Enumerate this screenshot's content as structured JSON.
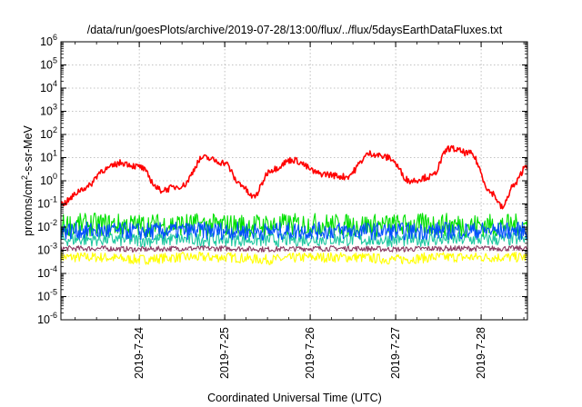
{
  "chart_data": {
    "type": "line",
    "title": "/data/run/goesPlots/archive/2019-07-28/13:00/flux/../flux/5daysEarthDataFluxes.txt",
    "xlabel": "Coordinated Universal Time (UTC)",
    "ylabel_base": "protons/cm",
    "ylabel_sup": "2",
    "ylabel_tail": "-s-sr-MeV",
    "yscale": "log",
    "ylim": [
      1e-06,
      1000000.0
    ],
    "xlim_days": [
      "2019-07-23 02:00",
      "2019-07-28 13:00"
    ],
    "x_ticks": [
      "2019-7-24",
      "2019-7-25",
      "2019-7-26",
      "2019-7-27",
      "2019-7-28"
    ],
    "y_tick_exponents": [
      -6,
      -5,
      -4,
      -3,
      -2,
      -1,
      0,
      1,
      2,
      3,
      4,
      5,
      6
    ],
    "grid": true,
    "series": [
      {
        "color": "#ffff00",
        "x": [
          "2019-07-23 02:00",
          "2019-07-23 12:00",
          "2019-07-24 00:00",
          "2019-07-24 12:00",
          "2019-07-25 00:00",
          "2019-07-25 12:00",
          "2019-07-26 00:00",
          "2019-07-26 12:00",
          "2019-07-27 00:00",
          "2019-07-27 12:00",
          "2019-07-28 00:00",
          "2019-07-28 13:00"
        ],
        "values": [
          0.0005,
          0.0005,
          0.0004,
          0.0005,
          0.0005,
          0.0004,
          0.0005,
          0.0005,
          0.0004,
          0.0005,
          0.0005,
          0.0005
        ]
      },
      {
        "color": "#8b3a62",
        "x": [
          "2019-07-23 02:00",
          "2019-07-23 12:00",
          "2019-07-24 00:00",
          "2019-07-24 12:00",
          "2019-07-25 00:00",
          "2019-07-25 12:00",
          "2019-07-26 00:00",
          "2019-07-26 12:00",
          "2019-07-27 00:00",
          "2019-07-27 12:00",
          "2019-07-28 00:00",
          "2019-07-28 13:00"
        ],
        "values": [
          0.0012,
          0.0012,
          0.0011,
          0.0012,
          0.0012,
          0.0011,
          0.0012,
          0.0012,
          0.0011,
          0.0012,
          0.0012,
          0.0012
        ]
      },
      {
        "color": "#1fc8a0",
        "x": [
          "2019-07-23 02:00",
          "2019-07-23 12:00",
          "2019-07-24 00:00",
          "2019-07-24 12:00",
          "2019-07-25 00:00",
          "2019-07-25 12:00",
          "2019-07-26 00:00",
          "2019-07-26 12:00",
          "2019-07-27 00:00",
          "2019-07-27 12:00",
          "2019-07-28 00:00",
          "2019-07-28 13:00"
        ],
        "values": [
          0.003,
          0.003,
          0.0028,
          0.003,
          0.003,
          0.0028,
          0.003,
          0.003,
          0.0028,
          0.003,
          0.003,
          0.003
        ]
      },
      {
        "color": "#00e000",
        "x": [
          "2019-07-23 02:00",
          "2019-07-23 12:00",
          "2019-07-24 00:00",
          "2019-07-24 12:00",
          "2019-07-25 00:00",
          "2019-07-25 12:00",
          "2019-07-26 00:00",
          "2019-07-26 12:00",
          "2019-07-27 00:00",
          "2019-07-27 12:00",
          "2019-07-28 00:00",
          "2019-07-28 13:00"
        ],
        "values": [
          0.012,
          0.013,
          0.012,
          0.013,
          0.012,
          0.012,
          0.013,
          0.012,
          0.012,
          0.013,
          0.012,
          0.012
        ]
      },
      {
        "color": "#0050ff",
        "x": [
          "2019-07-23 02:00",
          "2019-07-23 12:00",
          "2019-07-24 00:00",
          "2019-07-24 12:00",
          "2019-07-25 00:00",
          "2019-07-25 12:00",
          "2019-07-26 00:00",
          "2019-07-26 12:00",
          "2019-07-27 00:00",
          "2019-07-27 12:00",
          "2019-07-28 00:00",
          "2019-07-28 13:00"
        ],
        "values": [
          0.007,
          0.007,
          0.0065,
          0.007,
          0.007,
          0.0065,
          0.007,
          0.007,
          0.0065,
          0.007,
          0.007,
          0.007
        ]
      },
      {
        "color": "#ff0000",
        "x": [
          "2019-07-23 02:00",
          "2019-07-23 09:00",
          "2019-07-23 14:00",
          "2019-07-23 19:00",
          "2019-07-24 00:00",
          "2019-07-24 06:00",
          "2019-07-24 12:00",
          "2019-07-24 18:00",
          "2019-07-25 00:00",
          "2019-07-25 04:00",
          "2019-07-25 08:00",
          "2019-07-25 13:00",
          "2019-07-25 19:00",
          "2019-07-26 03:00",
          "2019-07-26 10:00",
          "2019-07-26 17:00",
          "2019-07-26 22:00",
          "2019-07-27 04:00",
          "2019-07-27 10:00",
          "2019-07-27 15:00",
          "2019-07-27 21:00",
          "2019-07-28 03:00",
          "2019-07-28 06:00",
          "2019-07-28 09:00",
          "2019-07-28 13:00"
        ],
        "values": [
          0.1,
          0.5,
          3,
          6,
          4,
          0.4,
          0.6,
          10,
          6,
          0.8,
          0.2,
          3,
          8,
          2,
          1.5,
          15,
          10,
          1,
          1.5,
          25,
          15,
          0.3,
          0.07,
          0.6,
          5
        ]
      }
    ]
  }
}
